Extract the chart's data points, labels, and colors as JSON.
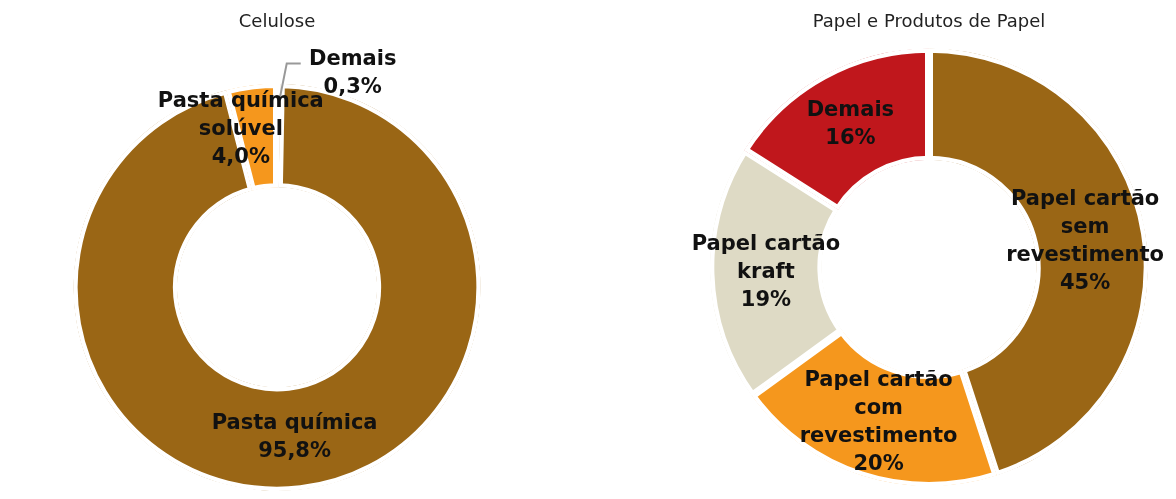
{
  "chart_data": [
    {
      "type": "donut",
      "title": "Celulose",
      "categories": [
        "Demais",
        "Pasta química",
        "Pasta química solúvel"
      ],
      "values": [
        0.3,
        95.8,
        4.0
      ],
      "colors": [
        "#8c8c8c",
        "#9a6615",
        "#f5971d"
      ],
      "value_labels": [
        "0,3%",
        "95,8%",
        "4,0%"
      ]
    },
    {
      "type": "donut",
      "title": "Papel e Produtos de Papel",
      "categories": [
        "Papel cartão sem revestimento",
        "Papel cartão com revestimento",
        "Papel cartão kraft",
        "Demais"
      ],
      "values": [
        45,
        20,
        19,
        16
      ],
      "colors": [
        "#9a6615",
        "#f5971d",
        "#dedac5",
        "#c0171c"
      ],
      "value_labels": [
        "45%",
        "20%",
        "19%",
        "16%"
      ]
    }
  ]
}
